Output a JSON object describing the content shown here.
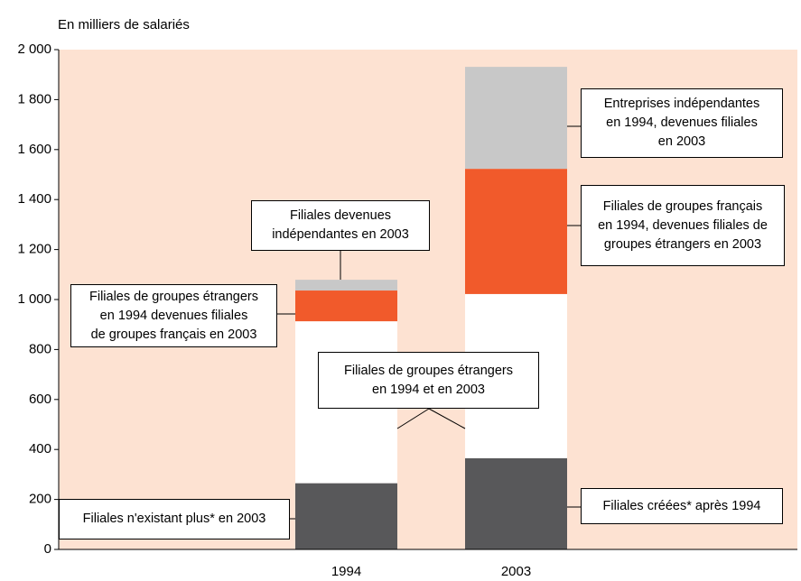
{
  "chart_data": {
    "type": "stacked_bar",
    "subtitle": "En milliers de salariés",
    "categories": [
      "1994",
      "2003"
    ],
    "series": [
      {
        "name": "Filiales n'existant plus* en 2003",
        "color": "#58585a",
        "values": [
          265,
          null
        ]
      },
      {
        "name": "Filiales créées* après 1994",
        "color": "#58585a",
        "values": [
          null,
          365
        ]
      },
      {
        "name": "Filiales de groupes étrangers\nen 1994 et en 2003",
        "color": "#ffffff",
        "values": [
          648,
          657
        ]
      },
      {
        "name": "Filiales de groupes étrangers\nen 1994 devenues filiales\nde groupes français en 2003",
        "color": "#f15a2b",
        "values": [
          123,
          null
        ]
      },
      {
        "name": "Filiales de groupes français\nen 1994, devenues filiales de\ngroupes étrangers en 2003",
        "color": "#f15a2b",
        "values": [
          null,
          501
        ]
      },
      {
        "name": "Filiales devenues\nindépendantes en 2003",
        "color": "#c8c8c8",
        "values": [
          43,
          null
        ]
      },
      {
        "name": "Entreprises indépendantes\nen 1994, devenues filiales\nen 2003",
        "color": "#c8c8c8",
        "values": [
          null,
          408
        ]
      }
    ],
    "ylim": [
      0,
      2000
    ],
    "yticks": [
      0,
      200,
      400,
      600,
      800,
      {
        "value": 1000,
        "label": "1 000"
      },
      {
        "value": 1200,
        "label": "1 200"
      },
      {
        "value": 1400,
        "label": "1 400"
      },
      {
        "value": 1600,
        "label": "1 600"
      },
      {
        "value": 1800,
        "label": "1 800"
      },
      {
        "value": 2000,
        "label": "2 000"
      }
    ],
    "background": "#fde2d2"
  }
}
